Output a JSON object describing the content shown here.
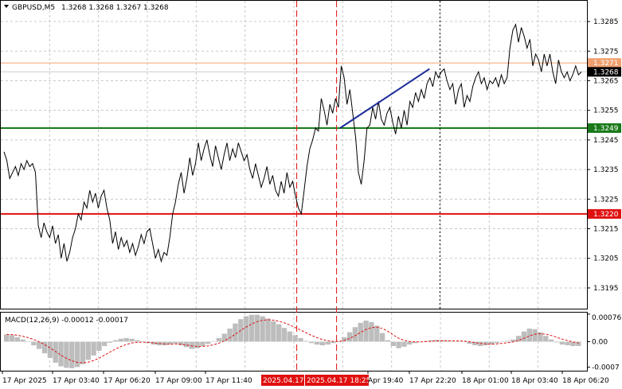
{
  "header": {
    "symbol_timeframe": "GBPUSD,M5",
    "quote": "1.3268 1.3268 1.3267 1.3268"
  },
  "macd_header": {
    "label": "MACD(12,26,9) -0.00012 -0.00017"
  },
  "colors": {
    "price_line": "#000000",
    "green_level": "#1a7a1a",
    "red_level": "#e01010",
    "orange_level": "#f0a070",
    "trend_line": "#1a2a9a",
    "vline_red": "#e01010",
    "vline_black": "#000000",
    "histogram": "#bdbdbd",
    "signal": "#e01010"
  },
  "chart_data": [
    {
      "type": "line",
      "title": "GBPUSD,M5",
      "ylim": [
        1.3188,
        1.3292
      ],
      "y_ticks": [
        "1.3285",
        "1.3275",
        "1.3265",
        "1.3255",
        "1.3245",
        "1.3235",
        "1.3225",
        "1.3215",
        "1.3205",
        "1.3195"
      ],
      "x_ticks": [
        "17 Apr 2025",
        "17 Apr 03:40",
        "17 Apr 06:20",
        "17 Apr 09:00",
        "17 Apr 11:40",
        "2025.04.17",
        "2025.04.17 18:25",
        "Apr 19:40",
        "17 Apr 22:20",
        "18 Apr 01:00",
        "18 Apr 03:40",
        "18 Apr 06:20"
      ],
      "grid": true,
      "levels": [
        {
          "label": "1.3271",
          "value": 1.3271,
          "color": "#f0a070"
        },
        {
          "label": "1.3268",
          "value": 1.3268,
          "color": "#bbbbbb",
          "current": true
        },
        {
          "label": "1.3249",
          "value": 1.3249,
          "color": "#1a7a1a"
        },
        {
          "label": "1.3220",
          "value": 1.322,
          "color": "#e01010"
        }
      ],
      "vertical_markers": [
        {
          "label": "2025.04.17",
          "style": "red-dashed"
        },
        {
          "label": "2025.04.17 18:25",
          "style": "red-dashed"
        },
        {
          "style": "black-dotted"
        }
      ],
      "trend_line": {
        "from": 1.3249,
        "to": 1.3269
      },
      "series": [
        {
          "values": [
            1.3241,
            1.3238,
            1.3232,
            1.3234,
            1.3236,
            1.3233,
            1.3237,
            1.3235,
            1.3238,
            1.3236,
            1.3237,
            1.3234,
            1.3216,
            1.3212,
            1.3217,
            1.3214,
            1.3212,
            1.3216,
            1.321,
            1.3213,
            1.3205,
            1.321,
            1.3204,
            1.3207,
            1.3212,
            1.3215,
            1.322,
            1.3218,
            1.3224,
            1.3222,
            1.3228,
            1.3224,
            1.3227,
            1.3222,
            1.3226,
            1.3228,
            1.3222,
            1.3218,
            1.321,
            1.3214,
            1.3208,
            1.3212,
            1.3209,
            1.3211,
            1.3207,
            1.321,
            1.3206,
            1.3209,
            1.3213,
            1.321,
            1.3214,
            1.3215,
            1.321,
            1.3205,
            1.3208,
            1.3204,
            1.3207,
            1.3206,
            1.3212,
            1.322,
            1.3224,
            1.323,
            1.3234,
            1.3227,
            1.3232,
            1.3239,
            1.3233,
            1.3237,
            1.3244,
            1.3238,
            1.3242,
            1.3245,
            1.324,
            1.3236,
            1.3243,
            1.3239,
            1.3235,
            1.324,
            1.3244,
            1.3238,
            1.3242,
            1.3239,
            1.3244,
            1.3241,
            1.3238,
            1.324,
            1.3235,
            1.3232,
            1.3237,
            1.3233,
            1.3229,
            1.3232,
            1.3236,
            1.323,
            1.3233,
            1.3228,
            1.3226,
            1.3231,
            1.3227,
            1.3234,
            1.3229,
            1.3231,
            1.3226,
            1.3222,
            1.322,
            1.3228,
            1.3236,
            1.3242,
            1.3245,
            1.3249,
            1.3248,
            1.3259,
            1.3255,
            1.325,
            1.3257,
            1.3254,
            1.3259,
            1.3256,
            1.327,
            1.3266,
            1.3257,
            1.3262,
            1.3254,
            1.3246,
            1.3234,
            1.323,
            1.3238,
            1.3249,
            1.325,
            1.3256,
            1.3252,
            1.3258,
            1.3252,
            1.325,
            1.3254,
            1.3256,
            1.3251,
            1.3247,
            1.3253,
            1.3249,
            1.3255,
            1.325,
            1.3258,
            1.3256,
            1.3261,
            1.3258,
            1.3262,
            1.3259,
            1.3264,
            1.3266,
            1.3263,
            1.3268,
            1.3266,
            1.3268,
            1.3269,
            1.3265,
            1.3262,
            1.3264,
            1.3257,
            1.3262,
            1.3264,
            1.3256,
            1.326,
            1.3258,
            1.3263,
            1.3266,
            1.3268,
            1.3264,
            1.3266,
            1.3262,
            1.3265,
            1.3264,
            1.3266,
            1.3263,
            1.3267,
            1.3264,
            1.3266,
            1.3276,
            1.3282,
            1.3284,
            1.3278,
            1.3283,
            1.328,
            1.3276,
            1.3279,
            1.327,
            1.3274,
            1.3272,
            1.3268,
            1.3274,
            1.327,
            1.3274,
            1.3268,
            1.3264,
            1.3272,
            1.3268,
            1.3266,
            1.3268,
            1.3265,
            1.3267,
            1.327,
            1.3267,
            1.3268
          ]
        }
      ]
    },
    {
      "type": "bar",
      "title": "MACD(12,26,9) -0.00012 -0.00017",
      "ylim": [
        -0.0008,
        0.0008
      ],
      "y_ticks": [
        "0.00076",
        "0.00",
        "-0.0007"
      ],
      "series": [
        {
          "values": [
            0.0002,
            0.00018,
            0.00012,
            6e-05,
            0.0,
            -0.0001,
            -0.0002,
            -0.00032,
            -0.00045,
            -0.00058,
            -0.00068,
            -0.00072,
            -0.00073,
            -0.0007,
            -0.00062,
            -0.0005,
            -0.00038,
            -0.00025,
            -0.00012,
            -3e-05,
            4e-05,
            8e-05,
            0.0001,
            8e-05,
            4e-05,
            0.0,
            -4e-05,
            -8e-05,
            -0.0001,
            -0.0001,
            -8e-05,
            -5e-05,
            -0.0001,
            -0.00015,
            -0.0002,
            -0.00018,
            -0.00012,
            -6e-05,
            0.0,
            0.0001,
            0.00022,
            0.00036,
            0.0005,
            0.00062,
            0.0007,
            0.00074,
            0.00074,
            0.0007,
            0.00064,
            0.00056,
            0.00048,
            0.00038,
            0.00028,
            0.00018,
            0.0001,
            2e-05,
            -4e-05,
            -8e-05,
            -0.0001,
            -8e-05,
            -4e-05,
            0.0,
            0.00012,
            0.00026,
            0.0004,
            0.00052,
            0.00058,
            0.00054,
            0.00044,
            0.00024,
            4e-05,
            -0.00012,
            -0.00018,
            -0.00014,
            -8e-05,
            -4e-05,
            0.0,
            2e-05,
            4e-05,
            5e-05,
            4e-05,
            3e-05,
            2e-05,
            1e-05,
            0.0,
            -6e-05,
            -0.0001,
            -0.00012,
            -0.0001,
            -8e-05,
            -4e-05,
            0.0,
            2e-05,
            6e-05,
            0.00016,
            0.00028,
            0.00036,
            0.00034,
            0.00026,
            0.00016,
            6e-05,
            -2e-05,
            -8e-05,
            -0.0001,
            -0.00012,
            -0.00012
          ]
        }
      ]
    }
  ]
}
